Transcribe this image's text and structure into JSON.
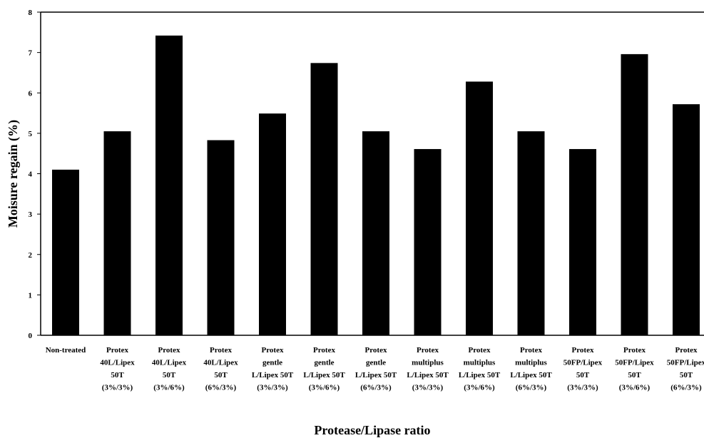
{
  "chart_data": {
    "type": "bar",
    "xlabel": "Protease/Lipase ratio",
    "ylabel": "Moisure regain (%)",
    "ylim": [
      0,
      8
    ],
    "yticks": [
      0,
      1,
      2,
      3,
      4,
      5,
      6,
      7,
      8
    ],
    "grid": false,
    "bar_color": "#000000",
    "categories": [
      [
        "Non-treated"
      ],
      [
        "Protex",
        "40L/Lipex",
        "50T",
        "(3%/3%)"
      ],
      [
        "Protex",
        "40L/Lipex",
        "50T",
        "(3%/6%)"
      ],
      [
        "Protex",
        "40L/Lipex",
        "50T",
        "(6%/3%)"
      ],
      [
        "Protex",
        "gentle",
        "L/Lipex 50T",
        "(3%/3%)"
      ],
      [
        "Protex",
        "gentle",
        "L/Lipex 50T",
        "(3%/6%)"
      ],
      [
        "Protex",
        "gentle",
        "L/Lipex 50T",
        "(6%/3%)"
      ],
      [
        "Protex",
        "multiplus",
        "L/Lipex 50T",
        "(3%/3%)"
      ],
      [
        "Protex",
        "multiplus",
        "L/Lipex 50T",
        "(3%/6%)"
      ],
      [
        "Protex",
        "multiplus",
        "L/Lipex 50T",
        "(6%/3%)"
      ],
      [
        "Protex",
        "50FP/Lipex",
        "50T",
        "(3%/3%)"
      ],
      [
        "Protex",
        "50FP/Lipex",
        "50T",
        "(3%/6%)"
      ],
      [
        "Protex",
        "50FP/Lipex",
        "50T",
        "(6%/3%)"
      ]
    ],
    "values": [
      4.1,
      5.05,
      7.42,
      4.83,
      5.49,
      6.74,
      5.05,
      4.61,
      6.28,
      5.05,
      4.61,
      6.96,
      5.72
    ]
  }
}
